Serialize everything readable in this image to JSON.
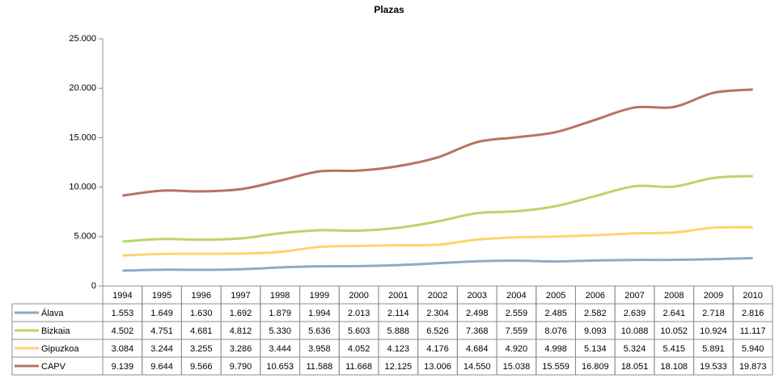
{
  "chart_data": {
    "type": "line",
    "title": "Plazas",
    "categories": [
      "1994",
      "1995",
      "1996",
      "1997",
      "1998",
      "1999",
      "2000",
      "2001",
      "2002",
      "2003",
      "2004",
      "2005",
      "2006",
      "2007",
      "2008",
      "2009",
      "2010"
    ],
    "ylim": [
      0,
      25000
    ],
    "yticks": [
      0,
      {
        "value": 5000,
        "label": "5.000"
      },
      {
        "value": 10000,
        "label": "10.000"
      },
      {
        "value": 15000,
        "label": "15.000"
      },
      {
        "value": 20000,
        "label": "20.000"
      },
      {
        "value": 25000,
        "label": "25.000"
      }
    ],
    "grid": false,
    "series": [
      {
        "name": "Álava",
        "color": "#8eaac6",
        "values": [
          1553,
          1649,
          1630,
          1692,
          1879,
          1994,
          2013,
          2114,
          2304,
          2498,
          2559,
          2485,
          2582,
          2639,
          2641,
          2718,
          2816
        ],
        "value_labels": [
          "1.553",
          "1.649",
          "1.630",
          "1.692",
          "1.879",
          "1.994",
          "2.013",
          "2.114",
          "2.304",
          "2.498",
          "2.559",
          "2.485",
          "2.582",
          "2.639",
          "2.641",
          "2.718",
          "2.816"
        ]
      },
      {
        "name": "Bizkaia",
        "color": "#bcd46a",
        "values": [
          4502,
          4751,
          4681,
          4812,
          5330,
          5636,
          5603,
          5888,
          6526,
          7368,
          7559,
          8076,
          9093,
          10088,
          10052,
          10924,
          11117
        ],
        "value_labels": [
          "4.502",
          "4.751",
          "4.681",
          "4.812",
          "5.330",
          "5.636",
          "5.603",
          "5.888",
          "6.526",
          "7.368",
          "7.559",
          "8.076",
          "9.093",
          "10.088",
          "10.052",
          "10.924",
          "11.117"
        ]
      },
      {
        "name": "Gipuzkoa",
        "color": "#fdd46c",
        "values": [
          3084,
          3244,
          3255,
          3286,
          3444,
          3958,
          4052,
          4123,
          4176,
          4684,
          4920,
          4998,
          5134,
          5324,
          5415,
          5891,
          5940
        ],
        "value_labels": [
          "3.084",
          "3.244",
          "3.255",
          "3.286",
          "3.444",
          "3.958",
          "4.052",
          "4.123",
          "4.176",
          "4.684",
          "4.920",
          "4.998",
          "5.134",
          "5.324",
          "5.415",
          "5.891",
          "5.940"
        ]
      },
      {
        "name": "CAPV",
        "color": "#b6735f",
        "values": [
          9139,
          9644,
          9566,
          9790,
          10653,
          11588,
          11668,
          12125,
          13006,
          14550,
          15038,
          15559,
          16809,
          18051,
          18108,
          19533,
          19873
        ],
        "value_labels": [
          "9.139",
          "9.644",
          "9.566",
          "9.790",
          "10.653",
          "11.588",
          "11.668",
          "12.125",
          "13.006",
          "14.550",
          "15.038",
          "15.559",
          "16.809",
          "18.051",
          "18.108",
          "19.533",
          "19.873"
        ]
      }
    ]
  }
}
